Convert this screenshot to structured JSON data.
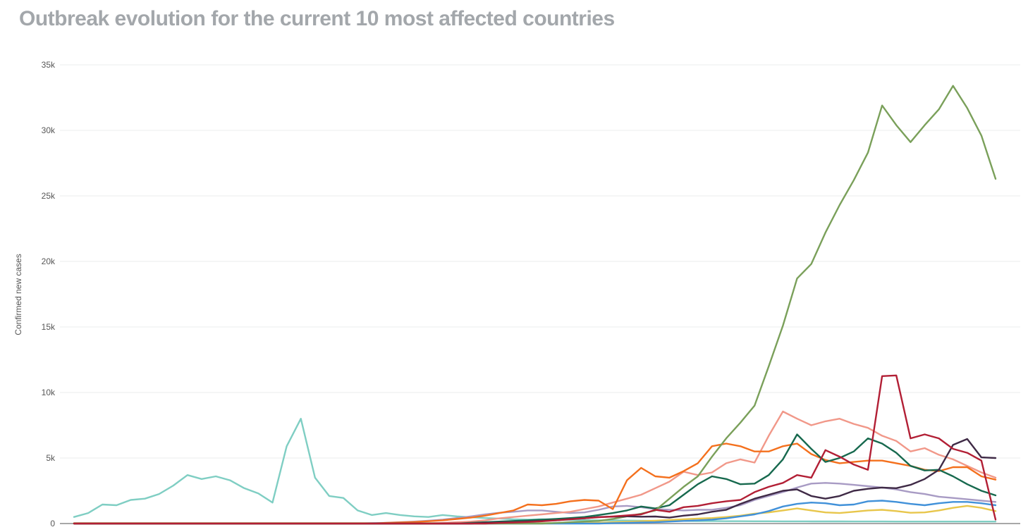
{
  "page": {
    "title": "Outbreak evolution for the current 10 most affected countries"
  },
  "chart_data": {
    "type": "line",
    "title": "Outbreak evolution for the current 10 most affected countries",
    "xlabel": "",
    "ylabel": "Confirmed new cases",
    "ylim": [
      0,
      35000
    ],
    "grid": true,
    "legend_position": "none",
    "y_ticks": [
      {
        "value": 0,
        "label": "0"
      },
      {
        "value": 5000,
        "label": "5k"
      },
      {
        "value": 10000,
        "label": "10k"
      },
      {
        "value": 15000,
        "label": "15k"
      },
      {
        "value": 20000,
        "label": "20k"
      },
      {
        "value": 25000,
        "label": "25k"
      },
      {
        "value": 30000,
        "label": "30k"
      },
      {
        "value": 35000,
        "label": "35k"
      }
    ],
    "x_count": 66,
    "series": [
      {
        "name": "teal",
        "color": "#7fcec3",
        "values": [
          500,
          800,
          1450,
          1400,
          1800,
          1900,
          2250,
          2900,
          3700,
          3400,
          3600,
          3300,
          2700,
          2300,
          1600,
          5900,
          8000,
          3500,
          2100,
          1950,
          1000,
          650,
          800,
          650,
          550,
          500,
          650,
          550,
          480,
          420,
          380,
          330,
          300,
          330,
          300,
          280,
          260,
          250,
          240,
          230,
          220,
          210,
          200,
          200,
          190,
          190,
          180,
          180,
          170,
          170,
          165,
          165,
          160,
          160,
          160,
          155,
          155,
          155,
          150,
          150,
          150,
          150,
          150,
          150,
          150,
          150
        ]
      },
      {
        "name": "yellow",
        "color": "#e8c64b",
        "values": [
          30,
          30,
          30,
          30,
          30,
          30,
          30,
          30,
          30,
          30,
          30,
          30,
          30,
          30,
          30,
          30,
          30,
          30,
          30,
          30,
          30,
          30,
          30,
          30,
          30,
          30,
          30,
          30,
          30,
          30,
          30,
          30,
          30,
          30,
          30,
          30,
          30,
          60,
          100,
          130,
          180,
          220,
          270,
          320,
          380,
          420,
          500,
          600,
          750,
          850,
          1000,
          1150,
          1000,
          850,
          800,
          900,
          1000,
          1050,
          950,
          820,
          850,
          1000,
          1200,
          1350,
          1200,
          950
        ]
      },
      {
        "name": "blue",
        "color": "#4191d9",
        "values": [
          0,
          0,
          0,
          0,
          0,
          0,
          0,
          0,
          0,
          0,
          0,
          0,
          0,
          0,
          0,
          0,
          0,
          0,
          0,
          0,
          0,
          0,
          0,
          0,
          0,
          0,
          0,
          0,
          0,
          0,
          0,
          0,
          0,
          0,
          0,
          0,
          0,
          0,
          30,
          50,
          80,
          100,
          150,
          200,
          250,
          300,
          400,
          550,
          700,
          950,
          1300,
          1500,
          1600,
          1550,
          1400,
          1450,
          1700,
          1750,
          1650,
          1500,
          1400,
          1550,
          1650,
          1650,
          1550,
          1400
        ]
      },
      {
        "name": "lavender",
        "color": "#a89bc4",
        "values": [
          0,
          0,
          0,
          0,
          0,
          0,
          0,
          0,
          0,
          0,
          0,
          0,
          0,
          0,
          0,
          0,
          0,
          0,
          0,
          0,
          0,
          30,
          60,
          100,
          150,
          220,
          300,
          420,
          550,
          700,
          820,
          900,
          1000,
          1000,
          900,
          800,
          850,
          1050,
          1300,
          1350,
          1250,
          1100,
          1050,
          1000,
          1050,
          1050,
          1200,
          1400,
          1800,
          2100,
          2400,
          2750,
          3050,
          3100,
          3050,
          2950,
          2850,
          2750,
          2600,
          2400,
          2250,
          2050,
          1950,
          1850,
          1750,
          1650
        ]
      },
      {
        "name": "salmon",
        "color": "#f19889",
        "values": [
          0,
          0,
          0,
          0,
          0,
          0,
          0,
          0,
          0,
          0,
          0,
          0,
          0,
          0,
          0,
          0,
          0,
          0,
          0,
          0,
          0,
          0,
          0,
          0,
          0,
          0,
          50,
          100,
          150,
          250,
          400,
          500,
          600,
          700,
          800,
          900,
          1100,
          1300,
          1600,
          1900,
          2200,
          2700,
          3200,
          3950,
          3700,
          3900,
          4600,
          4900,
          4650,
          6700,
          8550,
          8000,
          7500,
          7800,
          8000,
          7600,
          7300,
          6700,
          6300,
          5500,
          5750,
          5250,
          4900,
          4400,
          3900,
          3500
        ]
      },
      {
        "name": "orange",
        "color": "#f4701d",
        "values": [
          0,
          0,
          0,
          0,
          0,
          0,
          0,
          0,
          0,
          0,
          0,
          0,
          0,
          0,
          0,
          0,
          0,
          0,
          0,
          0,
          0,
          0,
          50,
          80,
          120,
          180,
          250,
          350,
          450,
          600,
          800,
          1000,
          1450,
          1400,
          1500,
          1700,
          1800,
          1750,
          1100,
          3300,
          4250,
          3600,
          3500,
          4000,
          4600,
          5900,
          6100,
          5900,
          5500,
          5500,
          5900,
          6100,
          5300,
          4850,
          4600,
          4700,
          4800,
          4800,
          4600,
          4400,
          4100,
          4000,
          4300,
          4300,
          3600,
          3350
        ]
      },
      {
        "name": "dark-green",
        "color": "#17694e",
        "values": [
          0,
          0,
          0,
          0,
          0,
          0,
          0,
          0,
          0,
          0,
          0,
          0,
          0,
          0,
          0,
          0,
          0,
          0,
          0,
          0,
          0,
          0,
          0,
          0,
          0,
          0,
          0,
          0,
          60,
          100,
          150,
          200,
          250,
          300,
          350,
          420,
          500,
          650,
          800,
          1000,
          1300,
          1150,
          1400,
          2200,
          3000,
          3600,
          3400,
          3000,
          3050,
          3700,
          4900,
          6800,
          5700,
          4700,
          5000,
          5500,
          6500,
          6100,
          5400,
          4400,
          4050,
          4100,
          3600,
          3000,
          2500,
          2150
        ]
      },
      {
        "name": "olive-green",
        "color": "#7aa05a",
        "values": [
          0,
          0,
          0,
          0,
          0,
          0,
          0,
          0,
          0,
          0,
          0,
          0,
          0,
          0,
          0,
          0,
          0,
          0,
          0,
          0,
          0,
          0,
          0,
          0,
          0,
          0,
          0,
          0,
          0,
          0,
          0,
          0,
          0,
          0,
          50,
          100,
          150,
          200,
          350,
          550,
          750,
          1000,
          1900,
          2800,
          3600,
          5100,
          6500,
          7700,
          9000,
          12000,
          15100,
          18700,
          19800,
          22200,
          24300,
          26200,
          28300,
          31900,
          30400,
          29100,
          30400,
          31600,
          33400,
          31700,
          29600,
          26300
        ]
      },
      {
        "name": "dark-purple",
        "color": "#3f2a46",
        "values": [
          0,
          0,
          0,
          0,
          0,
          0,
          0,
          0,
          0,
          0,
          0,
          0,
          0,
          0,
          0,
          0,
          0,
          0,
          0,
          0,
          0,
          0,
          0,
          0,
          0,
          0,
          0,
          0,
          0,
          50,
          80,
          100,
          150,
          200,
          250,
          350,
          400,
          500,
          520,
          550,
          520,
          540,
          450,
          600,
          700,
          900,
          1050,
          1500,
          1900,
          2200,
          2500,
          2600,
          2100,
          1900,
          2100,
          2500,
          2650,
          2750,
          2700,
          2950,
          3400,
          4100,
          6000,
          6450,
          5050,
          5000
        ]
      },
      {
        "name": "crimson",
        "color": "#b21f35",
        "values": [
          0,
          0,
          0,
          0,
          0,
          0,
          0,
          0,
          0,
          0,
          0,
          0,
          0,
          0,
          0,
          0,
          0,
          0,
          0,
          0,
          0,
          0,
          0,
          0,
          0,
          0,
          0,
          0,
          0,
          0,
          50,
          80,
          120,
          170,
          250,
          320,
          400,
          480,
          540,
          620,
          700,
          1050,
          900,
          1250,
          1350,
          1550,
          1700,
          1800,
          2400,
          2800,
          3100,
          3700,
          3500,
          5600,
          5100,
          4500,
          4100,
          11250,
          11300,
          6500,
          6800,
          6500,
          5700,
          5400,
          4800,
          300
        ]
      }
    ]
  }
}
